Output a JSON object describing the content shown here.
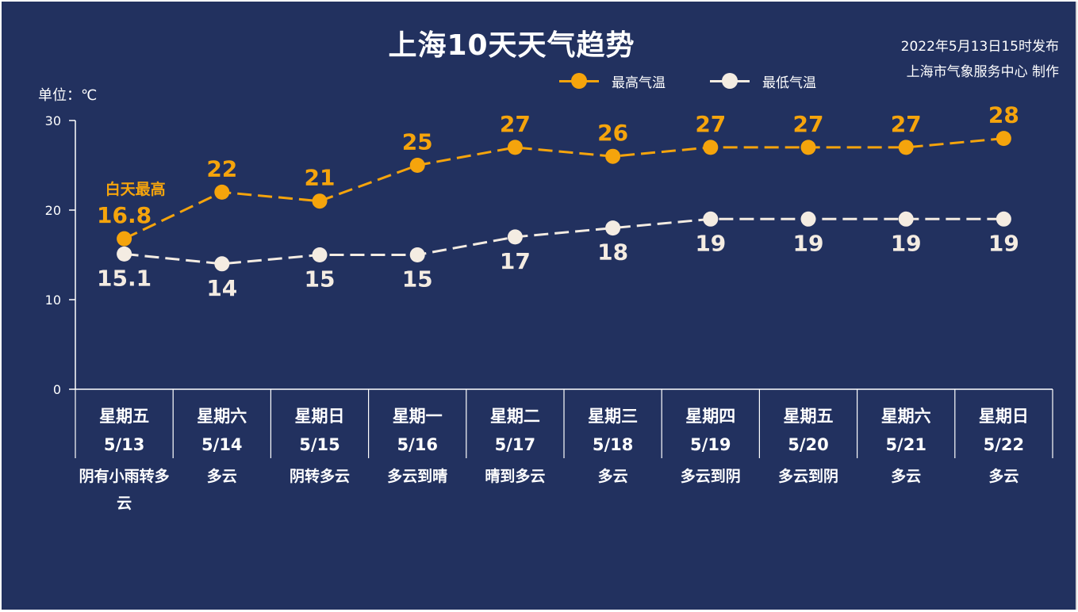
{
  "title": "上海10天天气趋势",
  "issued": "2022年5月13日15时发布",
  "producer": "上海市气象服务中心 制作",
  "unit_label": "单位：℃",
  "legend": {
    "high": "最高气温",
    "low": "最低气温"
  },
  "annotation": "白天最高",
  "colors": {
    "background": "#22315f",
    "high": "#f5a40c",
    "low": "#f4ece2",
    "axis": "#ffffff"
  },
  "days": [
    {
      "weekday": "星期五",
      "date": "5/13",
      "condition": "阴有小雨转多云"
    },
    {
      "weekday": "星期六",
      "date": "5/14",
      "condition": "多云"
    },
    {
      "weekday": "星期日",
      "date": "5/15",
      "condition": "阴转多云"
    },
    {
      "weekday": "星期一",
      "date": "5/16",
      "condition": "多云到晴"
    },
    {
      "weekday": "星期二",
      "date": "5/17",
      "condition": "晴到多云"
    },
    {
      "weekday": "星期三",
      "date": "5/18",
      "condition": "多云"
    },
    {
      "weekday": "星期四",
      "date": "5/19",
      "condition": "多云到阴"
    },
    {
      "weekday": "星期五",
      "date": "5/20",
      "condition": "多云到阴"
    },
    {
      "weekday": "星期六",
      "date": "5/21",
      "condition": "多云"
    },
    {
      "weekday": "星期日",
      "date": "5/22",
      "condition": "多云"
    }
  ],
  "chart_data": {
    "type": "line",
    "x": [
      "5/13",
      "5/14",
      "5/15",
      "5/16",
      "5/17",
      "5/18",
      "5/19",
      "5/20",
      "5/21",
      "5/22"
    ],
    "series": [
      {
        "name": "最高气温",
        "values": [
          16.8,
          22,
          21,
          25,
          27,
          26,
          27,
          27,
          27,
          28
        ]
      },
      {
        "name": "最低气温",
        "values": [
          15.1,
          14,
          15,
          15,
          17,
          18,
          19,
          19,
          19,
          19
        ]
      }
    ],
    "ylim": [
      0,
      30
    ],
    "yticks": [
      0,
      10,
      20,
      30
    ],
    "legend": "top-right",
    "grid": false,
    "line_style": "dashed"
  }
}
